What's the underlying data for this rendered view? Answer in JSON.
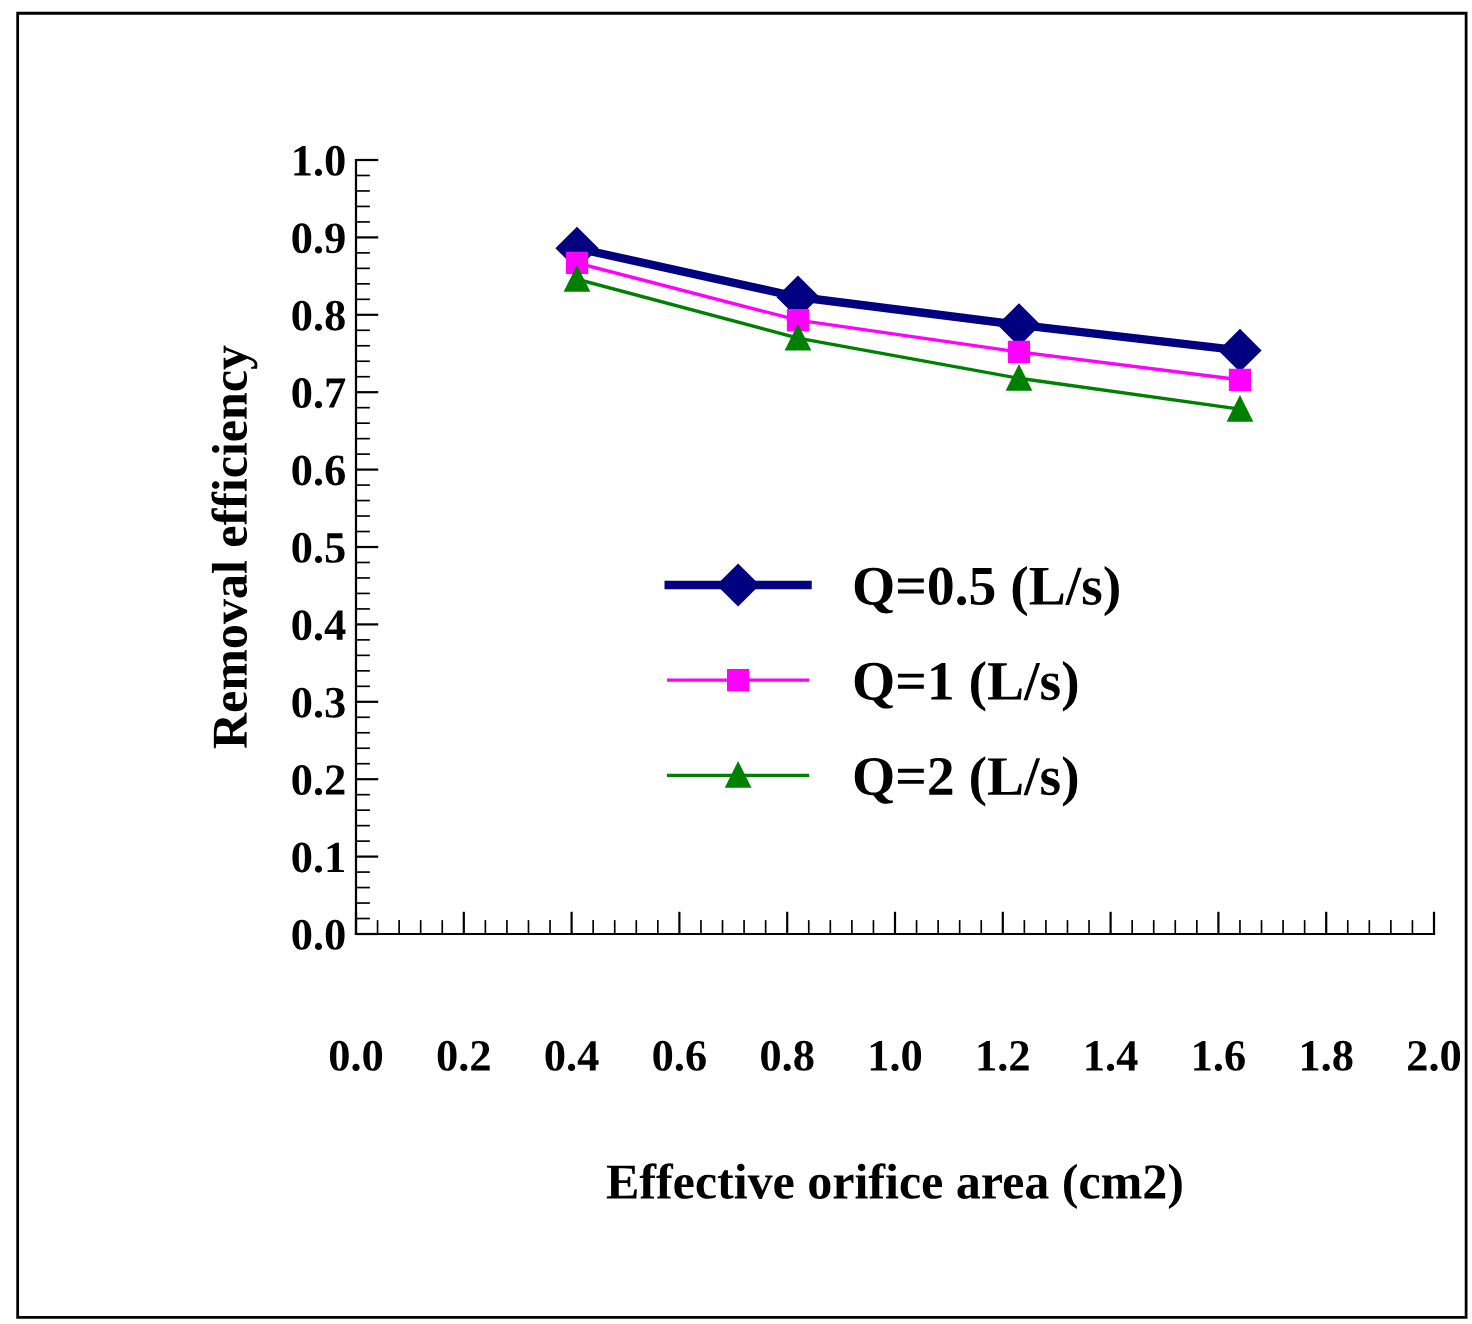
{
  "chart_data": {
    "type": "line",
    "xlabel": "Effective orifice area (cm2)",
    "ylabel": "Removal efficiency",
    "x": [
      0.41,
      0.82,
      1.23,
      1.64
    ],
    "series": [
      {
        "name": "Q=0.5 (L/s)",
        "color": "#000080",
        "marker": "diamond",
        "values": [
          0.886,
          0.823,
          0.787,
          0.754
        ]
      },
      {
        "name": "Q=1 (L/s)",
        "color": "#ff00ff",
        "marker": "square",
        "values": [
          0.867,
          0.793,
          0.752,
          0.716
        ]
      },
      {
        "name": "Q=2 (L/s)",
        "color": "#008000",
        "marker": "triangle",
        "values": [
          0.846,
          0.77,
          0.718,
          0.678
        ]
      }
    ],
    "xlim": [
      0,
      2
    ],
    "xticks": [
      {
        "value": 0,
        "label": "0.0"
      },
      {
        "value": 0.2,
        "label": "0.2"
      },
      {
        "value": 0.4,
        "label": "0.4"
      },
      {
        "value": 0.6,
        "label": "0.6"
      },
      {
        "value": 0.8,
        "label": "0.8"
      },
      {
        "value": 1,
        "label": "1.0"
      },
      {
        "value": 1.2,
        "label": "1.2"
      },
      {
        "value": 1.4,
        "label": "1.4"
      },
      {
        "value": 1.6,
        "label": "1.6"
      },
      {
        "value": 1.8,
        "label": "1.8"
      },
      {
        "value": 2,
        "label": "2.0"
      }
    ],
    "ylim": [
      0,
      1
    ],
    "yticks": [
      {
        "value": 0,
        "label": "0.0"
      },
      {
        "value": 0.1,
        "label": "0.1"
      },
      {
        "value": 0.2,
        "label": "0.2"
      },
      {
        "value": 0.3,
        "label": "0.3"
      },
      {
        "value": 0.4,
        "label": "0.4"
      },
      {
        "value": 0.5,
        "label": "0.5"
      },
      {
        "value": 0.6,
        "label": "0.6"
      },
      {
        "value": 0.7,
        "label": "0.7"
      },
      {
        "value": 0.8,
        "label": "0.8"
      },
      {
        "value": 0.9,
        "label": "0.9"
      },
      {
        "value": 1,
        "label": "1.0"
      }
    ],
    "grid": false,
    "legend": "bottom"
  }
}
